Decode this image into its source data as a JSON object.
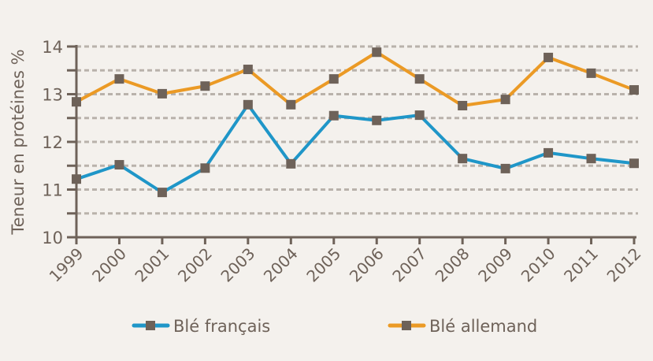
{
  "chart_data": {
    "type": "line",
    "title": "",
    "xlabel": "",
    "ylabel": "Teneur en protéines %",
    "ylim": [
      10,
      14
    ],
    "yticks": [
      "10",
      "11",
      "12",
      "13",
      "14"
    ],
    "grid": true,
    "x": [
      "1999",
      "2000",
      "2001",
      "2002",
      "2003",
      "2004",
      "2005",
      "2006",
      "2007",
      "2008",
      "2009",
      "2010",
      "2011",
      "2012"
    ],
    "series": [
      {
        "name": "Blé français",
        "color": "#1f96c8",
        "values": [
          11.22,
          11.52,
          10.94,
          11.45,
          12.78,
          11.54,
          12.55,
          12.45,
          12.56,
          11.65,
          11.44,
          11.77,
          11.65,
          11.55
        ]
      },
      {
        "name": "Blé allemand",
        "color": "#eb9a25",
        "values": [
          12.84,
          13.32,
          13.01,
          13.17,
          13.52,
          12.78,
          13.32,
          13.88,
          13.32,
          12.76,
          12.89,
          13.77,
          13.44,
          13.09
        ]
      }
    ],
    "marker_color": "#6e6259",
    "legend_position": "bottom"
  }
}
